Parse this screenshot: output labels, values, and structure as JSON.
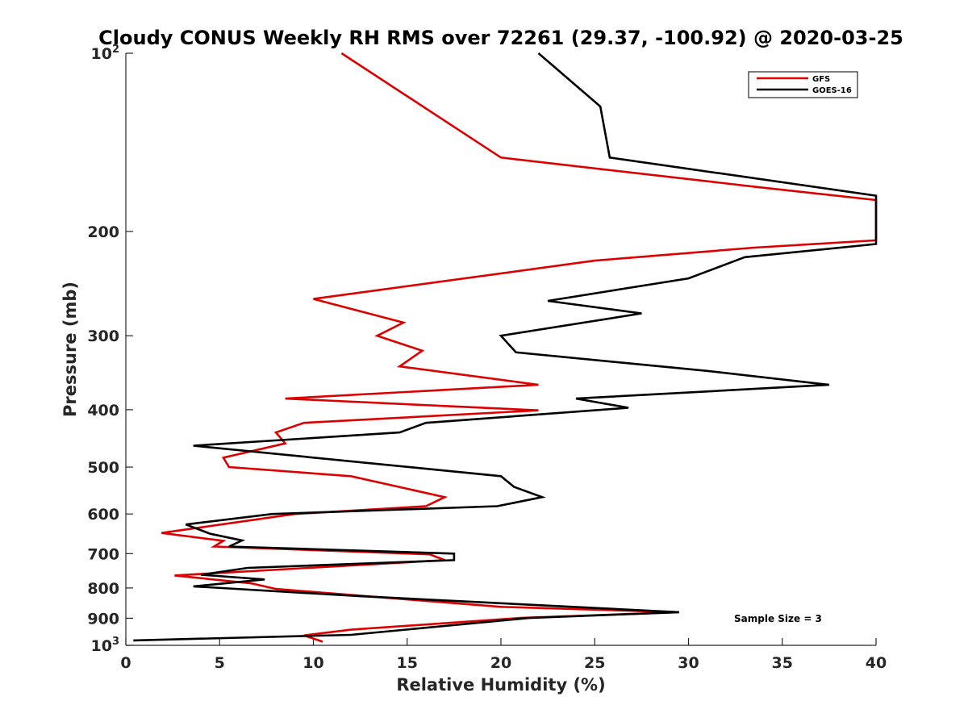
{
  "chart_data": {
    "type": "line",
    "title": "Cloudy CONUS Weekly RH RMS over 72261 (29.37, -100.92) @ 2020-03-25",
    "xlabel": "Relative Humidity (%)",
    "ylabel": "Pressure (mb)",
    "xlim": [
      0,
      40
    ],
    "ylim": [
      100,
      1000
    ],
    "y_scale": "log",
    "y_reversed": true,
    "xticks": [
      0,
      5,
      10,
      15,
      20,
      25,
      30,
      35,
      40
    ],
    "yticks": [
      {
        "value": 100,
        "base": "10",
        "exp": "2"
      },
      {
        "value": 200,
        "label": "200"
      },
      {
        "value": 300,
        "label": "300"
      },
      {
        "value": 400,
        "label": "400"
      },
      {
        "value": 500,
        "label": "500"
      },
      {
        "value": 600,
        "label": "600"
      },
      {
        "value": 700,
        "label": "700"
      },
      {
        "value": 800,
        "label": "800"
      },
      {
        "value": 900,
        "label": "900"
      },
      {
        "value": 1000,
        "base": "10",
        "exp": "3"
      }
    ],
    "grid": false,
    "legend_position": "top-right",
    "annotation": "Sample Size = 3",
    "series": [
      {
        "name": "GFS",
        "color": "#dd0000",
        "points": [
          [
            11.5,
            100
          ],
          [
            20.0,
            150
          ],
          [
            33.5,
            168
          ],
          [
            40.0,
            177
          ],
          [
            40.0,
            207
          ],
          [
            33.5,
            213
          ],
          [
            25.0,
            224
          ],
          [
            10.0,
            260
          ],
          [
            14.8,
            285
          ],
          [
            13.4,
            300
          ],
          [
            15.8,
            318
          ],
          [
            14.6,
            338
          ],
          [
            22.0,
            363
          ],
          [
            8.5,
            383
          ],
          [
            22.0,
            401
          ],
          [
            9.5,
            421
          ],
          [
            8.0,
            437
          ],
          [
            8.5,
            456
          ],
          [
            5.2,
            482
          ],
          [
            5.5,
            500
          ],
          [
            12.0,
            518
          ],
          [
            17.0,
            562
          ],
          [
            16.0,
            582
          ],
          [
            9.0,
            600
          ],
          [
            1.9,
            646
          ],
          [
            5.2,
            666
          ],
          [
            4.7,
            681
          ],
          [
            16.2,
            702
          ],
          [
            17.0,
            718
          ],
          [
            2.6,
            762
          ],
          [
            6.7,
            786
          ],
          [
            8.0,
            803
          ],
          [
            20.0,
            861
          ],
          [
            29.5,
            879
          ],
          [
            21.0,
            899
          ],
          [
            12.0,
            941
          ],
          [
            9.5,
            962
          ],
          [
            10.5,
            986
          ]
        ]
      },
      {
        "name": "GOES-16",
        "color": "#000000",
        "points": [
          [
            22.0,
            100
          ],
          [
            25.3,
            123
          ],
          [
            25.8,
            150
          ],
          [
            40.0,
            174
          ],
          [
            40.0,
            210
          ],
          [
            33.0,
            221
          ],
          [
            30.0,
            240
          ],
          [
            22.5,
            262
          ],
          [
            27.5,
            275
          ],
          [
            20.0,
            300
          ],
          [
            20.8,
            320
          ],
          [
            31.0,
            344
          ],
          [
            37.5,
            363
          ],
          [
            24.0,
            383
          ],
          [
            26.8,
            397
          ],
          [
            16.0,
            421
          ],
          [
            14.6,
            437
          ],
          [
            3.6,
            460
          ],
          [
            20.0,
            518
          ],
          [
            20.7,
            540
          ],
          [
            22.2,
            562
          ],
          [
            19.8,
            582
          ],
          [
            7.8,
            600
          ],
          [
            3.2,
            625
          ],
          [
            4.5,
            648
          ],
          [
            6.2,
            665
          ],
          [
            5.5,
            681
          ],
          [
            17.5,
            700
          ],
          [
            17.5,
            718
          ],
          [
            6.5,
            740
          ],
          [
            4.0,
            760
          ],
          [
            7.4,
            774
          ],
          [
            3.6,
            795
          ],
          [
            12.5,
            826
          ],
          [
            29.5,
            879
          ],
          [
            21.5,
            899
          ],
          [
            12.0,
            960
          ],
          [
            0.4,
            981
          ]
        ]
      }
    ]
  }
}
